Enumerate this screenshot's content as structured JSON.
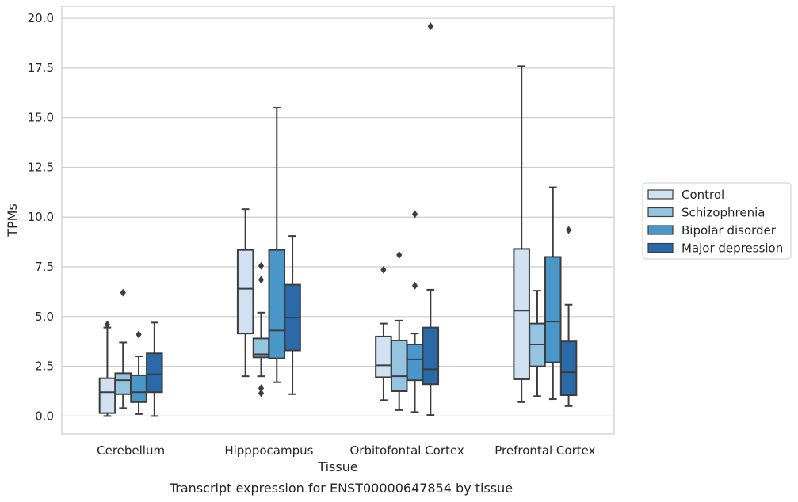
{
  "chart_data": {
    "type": "box",
    "title": "",
    "caption": "Transcript expression for ENST00000647854 by tissue",
    "xlabel": "Tissue",
    "ylabel": "TPMs",
    "ylim": [
      -0.9,
      20.6
    ],
    "yticks": [
      "0.0",
      "2.5",
      "5.0",
      "7.5",
      "10.0",
      "12.5",
      "15.0",
      "17.5",
      "20.0"
    ],
    "grid": "horizontal",
    "legend_position": "right",
    "categories": [
      "Cerebellum",
      "Hipppocampus",
      "Orbitofontal Cortex",
      "Prefrontal Cortex"
    ],
    "series": [
      {
        "name": "Control",
        "color": "#d0e1f2",
        "boxes": [
          {
            "whislo": 0.0,
            "q1": 0.15,
            "med": 1.2,
            "q3": 1.9,
            "whishi": 4.45,
            "fliers": [
              4.6
            ]
          },
          {
            "whislo": 2.0,
            "q1": 4.15,
            "med": 6.4,
            "q3": 8.35,
            "whishi": 10.4,
            "fliers": []
          },
          {
            "whislo": 0.8,
            "q1": 1.95,
            "med": 2.55,
            "q3": 4.0,
            "whishi": 4.65,
            "fliers": [
              7.35
            ]
          },
          {
            "whislo": 0.7,
            "q1": 1.85,
            "med": 5.3,
            "q3": 8.4,
            "whishi": 17.6,
            "fliers": []
          }
        ]
      },
      {
        "name": "Schizophrenia",
        "color": "#94c4df",
        "boxes": [
          {
            "whislo": 0.4,
            "q1": 1.1,
            "med": 1.8,
            "q3": 2.15,
            "whishi": 3.7,
            "fliers": [
              6.2
            ]
          },
          {
            "whislo": 2.0,
            "q1": 2.95,
            "med": 3.1,
            "q3": 3.9,
            "whishi": 5.2,
            "fliers": [
              7.55,
              6.85,
              1.4,
              1.15
            ]
          },
          {
            "whislo": 0.3,
            "q1": 1.25,
            "med": 2.0,
            "q3": 3.8,
            "whishi": 4.8,
            "fliers": [
              8.1
            ]
          },
          {
            "whislo": 1.0,
            "q1": 2.5,
            "med": 3.6,
            "q3": 4.65,
            "whishi": 6.3,
            "fliers": []
          }
        ]
      },
      {
        "name": "Bipolar disorder",
        "color": "#4a98c9",
        "boxes": [
          {
            "whislo": 0.1,
            "q1": 0.7,
            "med": 1.2,
            "q3": 2.05,
            "whishi": 3.0,
            "fliers": [
              4.1
            ]
          },
          {
            "whislo": 1.7,
            "q1": 2.9,
            "med": 4.3,
            "q3": 8.35,
            "whishi": 15.5,
            "fliers": []
          },
          {
            "whislo": 0.2,
            "q1": 1.8,
            "med": 2.85,
            "q3": 3.6,
            "whishi": 4.15,
            "fliers": [
              10.15,
              6.55
            ]
          },
          {
            "whislo": 0.85,
            "q1": 2.7,
            "med": 4.75,
            "q3": 8.0,
            "whishi": 11.5,
            "fliers": []
          }
        ]
      },
      {
        "name": "Major depression",
        "color": "#2b6aa9",
        "boxes": [
          {
            "whislo": 0.0,
            "q1": 1.2,
            "med": 2.1,
            "q3": 3.15,
            "whishi": 4.7,
            "fliers": []
          },
          {
            "whislo": 1.1,
            "q1": 3.3,
            "med": 4.95,
            "q3": 6.6,
            "whishi": 9.05,
            "fliers": []
          },
          {
            "whislo": 0.05,
            "q1": 1.6,
            "med": 2.35,
            "q3": 4.45,
            "whishi": 6.35,
            "fliers": [
              19.6
            ]
          },
          {
            "whislo": 0.5,
            "q1": 1.05,
            "med": 2.2,
            "q3": 3.75,
            "whishi": 5.6,
            "fliers": [
              9.35
            ]
          }
        ]
      }
    ]
  }
}
